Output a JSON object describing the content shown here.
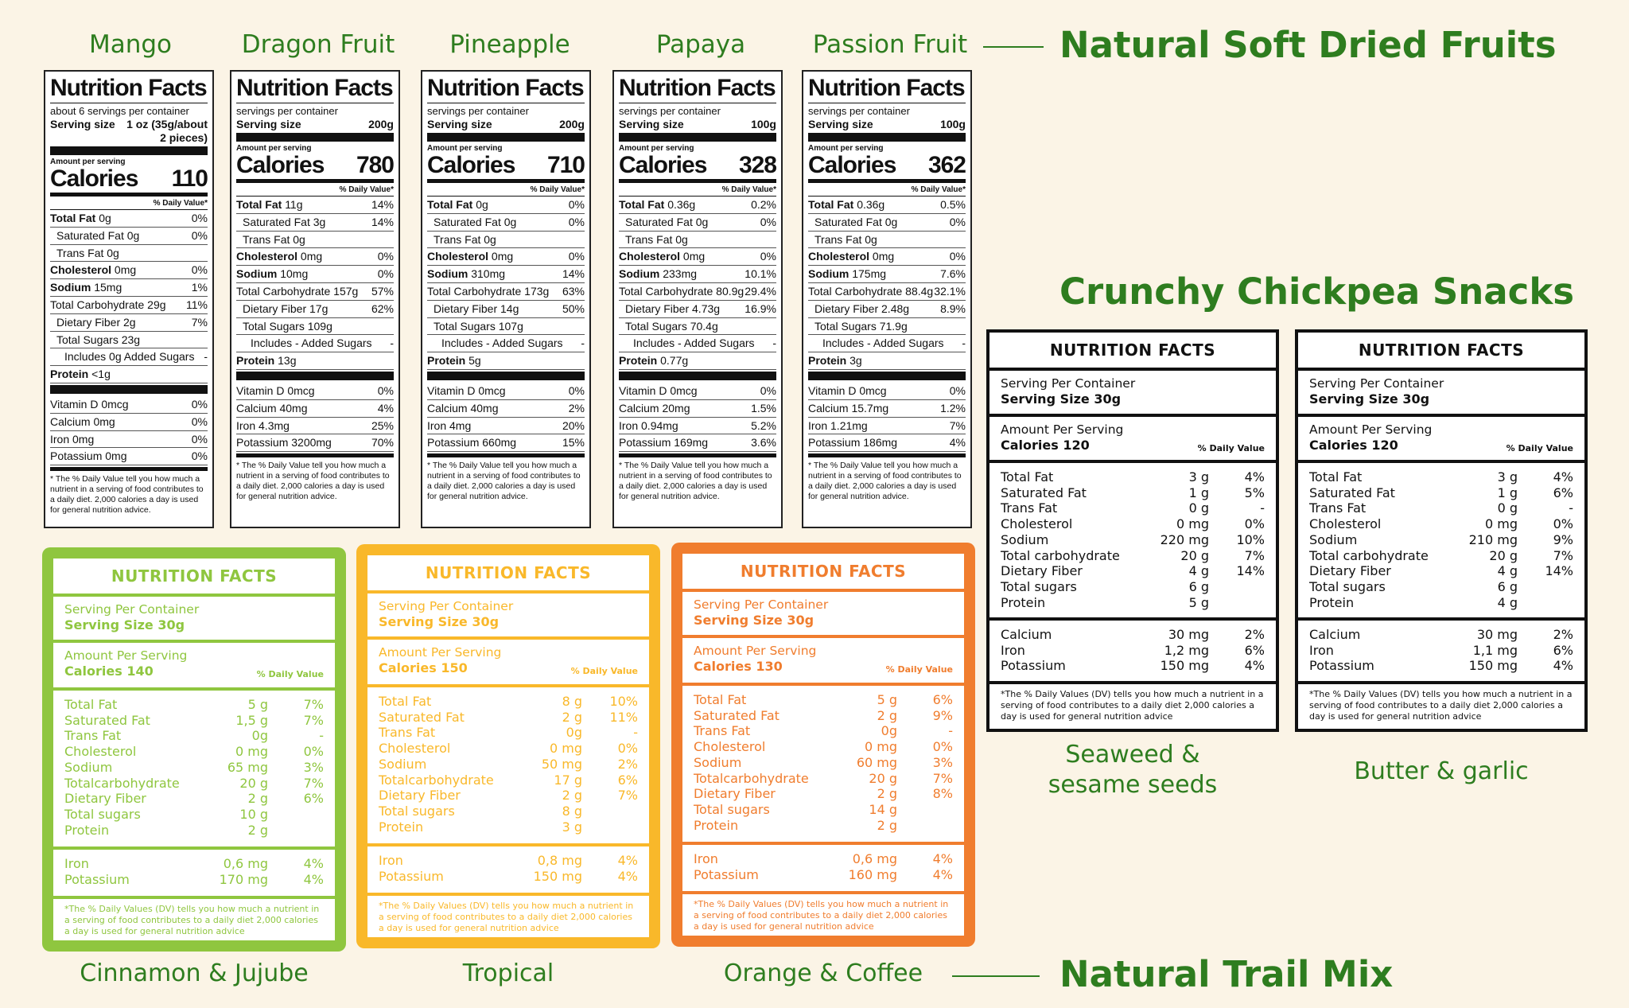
{
  "titles": {
    "dried": "Natural Soft Dried Fruits",
    "chickpea": "Crunchy Chickpea Snacks",
    "trail": "Natural Trail Mix"
  },
  "fruit_names": [
    "Mango",
    "Dragon Fruit",
    "Pineapple",
    "Papaya",
    "Passion Fruit"
  ],
  "colors": {
    "green": "#2e7d1f",
    "lime": "#8fc63f",
    "yellow": "#f9b82a",
    "orange": "#f07d2e",
    "bg": "#fbf4e6"
  },
  "dried_labels": [
    {
      "title": "Nutrition Facts",
      "servings": "about 6 servings per container",
      "serving_label": "Serving size",
      "serving_value": "1 oz (35g/about",
      "serving_value2": "2 pieces)",
      "amount_label": "Amount per serving",
      "calories_label": "Calories",
      "calories": "110",
      "dv_header": "% Daily Value*",
      "rows": [
        {
          "n": "Total Fat",
          "a": "0g",
          "d": "0%",
          "c": "b"
        },
        {
          "n": "Saturated Fat 0g",
          "a": "",
          "d": "0%",
          "c": "i1"
        },
        {
          "n": "Trans Fat 0g",
          "a": "",
          "d": "",
          "c": "i1"
        },
        {
          "n": "Cholesterol",
          "a": "0mg",
          "d": "0%",
          "c": "b"
        },
        {
          "n": "Sodium",
          "a": "15mg",
          "d": "1%",
          "c": "b"
        },
        {
          "n": "Total Carbohydrate 29g",
          "a": "",
          "d": "11%",
          "c": ""
        },
        {
          "n": "Dietary Fiber 2g",
          "a": "",
          "d": "7%",
          "c": "i1"
        },
        {
          "n": "Total Sugars 23g",
          "a": "",
          "d": "",
          "c": "i1"
        },
        {
          "n": "Includes 0g Added Sugars",
          "a": "",
          "d": "-",
          "c": "i2"
        },
        {
          "n": "Protein",
          "a": "<1g",
          "d": "",
          "c": "b"
        }
      ],
      "minerals": [
        {
          "n": "Vitamin D 0mcg",
          "d": "0%"
        },
        {
          "n": "Calcium 0mg",
          "d": "0%"
        },
        {
          "n": "Iron 0mg",
          "d": "0%"
        },
        {
          "n": "Potassium 0mg",
          "d": "0%"
        }
      ],
      "footnote": "* The % Daily Value tell you how much a nutrient in a serving of food contributes to a daily diet. 2,000 calories a day is used for general nutrition advice."
    },
    {
      "title": "Nutrition Facts",
      "servings": "servings per container",
      "serving_label": "Serving size",
      "serving_value": "200g",
      "serving_value2": "",
      "amount_label": "Amount per serving",
      "calories_label": "Calories",
      "calories": "780",
      "dv_header": "% Daily Value*",
      "rows": [
        {
          "n": "Total Fat",
          "a": "11g",
          "d": "14%",
          "c": "b"
        },
        {
          "n": "Saturated Fat 3g",
          "a": "",
          "d": "14%",
          "c": "i1"
        },
        {
          "n": "Trans Fat 0g",
          "a": "",
          "d": "",
          "c": "i1"
        },
        {
          "n": "Cholesterol",
          "a": "0mg",
          "d": "0%",
          "c": "b"
        },
        {
          "n": "Sodium",
          "a": "10mg",
          "d": "0%",
          "c": "b"
        },
        {
          "n": "Total Carbohydrate 157g",
          "a": "",
          "d": "57%",
          "c": ""
        },
        {
          "n": "Dietary Fiber 17g",
          "a": "",
          "d": "62%",
          "c": "i1"
        },
        {
          "n": "Total Sugars 109g",
          "a": "",
          "d": "",
          "c": "i1"
        },
        {
          "n": "Includes - Added Sugars",
          "a": "",
          "d": "-",
          "c": "i2"
        },
        {
          "n": "Protein",
          "a": "13g",
          "d": "",
          "c": "b"
        }
      ],
      "minerals": [
        {
          "n": "Vitamin D 0mcg",
          "d": "0%"
        },
        {
          "n": "Calcium 40mg",
          "d": "4%"
        },
        {
          "n": "Iron 4.3mg",
          "d": "25%"
        },
        {
          "n": "Potassium 3200mg",
          "d": "70%"
        }
      ],
      "footnote": "* The % Daily Value tell you how much a nutrient in a serving of food contributes to a daily diet. 2,000 calories a day is used for general nutrition advice."
    },
    {
      "title": "Nutrition Facts",
      "servings": "servings per container",
      "serving_label": "Serving size",
      "serving_value": "200g",
      "serving_value2": "",
      "amount_label": "Amount per serving",
      "calories_label": "Calories",
      "calories": "710",
      "dv_header": "% Daily Value*",
      "rows": [
        {
          "n": "Total Fat",
          "a": "0g",
          "d": "0%",
          "c": "b"
        },
        {
          "n": "Saturated Fat 0g",
          "a": "",
          "d": "0%",
          "c": "i1"
        },
        {
          "n": "Trans Fat 0g",
          "a": "",
          "d": "",
          "c": "i1"
        },
        {
          "n": "Cholesterol",
          "a": "0mg",
          "d": "0%",
          "c": "b"
        },
        {
          "n": "Sodium",
          "a": "310mg",
          "d": "14%",
          "c": "b"
        },
        {
          "n": "Total Carbohydrate 173g",
          "a": "",
          "d": "63%",
          "c": ""
        },
        {
          "n": "Dietary Fiber 14g",
          "a": "",
          "d": "50%",
          "c": "i1"
        },
        {
          "n": "Total Sugars 107g",
          "a": "",
          "d": "",
          "c": "i1"
        },
        {
          "n": "Includes - Added Sugars",
          "a": "",
          "d": "-",
          "c": "i2"
        },
        {
          "n": "Protein",
          "a": "5g",
          "d": "",
          "c": "b"
        }
      ],
      "minerals": [
        {
          "n": "Vitamin D 0mcg",
          "d": "0%"
        },
        {
          "n": "Calcium 40mg",
          "d": "2%"
        },
        {
          "n": "Iron 4mg",
          "d": "20%"
        },
        {
          "n": "Potassium 660mg",
          "d": "15%"
        }
      ],
      "footnote": "* The % Daily Value tell you how much a nutrient in a serving of food contributes to a daily diet. 2,000 calories a day is used for general nutrition advice."
    },
    {
      "title": "Nutrition Facts",
      "servings": "servings per container",
      "serving_label": "Serving size",
      "serving_value": "100g",
      "serving_value2": "",
      "amount_label": "Amount per serving",
      "calories_label": "Calories",
      "calories": "328",
      "dv_header": "% Daily Value*",
      "rows": [
        {
          "n": "Total Fat",
          "a": "0.36g",
          "d": "0.2%",
          "c": "b"
        },
        {
          "n": "Saturated Fat 0g",
          "a": "",
          "d": "0%",
          "c": "i1"
        },
        {
          "n": "Trans Fat 0g",
          "a": "",
          "d": "",
          "c": "i1"
        },
        {
          "n": "Cholesterol",
          "a": "0mg",
          "d": "0%",
          "c": "b"
        },
        {
          "n": "Sodium",
          "a": "233mg",
          "d": "10.1%",
          "c": "b"
        },
        {
          "n": "Total Carbohydrate 80.9g",
          "a": "",
          "d": "29.4%",
          "c": ""
        },
        {
          "n": "Dietary Fiber 4.73g",
          "a": "",
          "d": "16.9%",
          "c": "i1"
        },
        {
          "n": "Total Sugars 70.4g",
          "a": "",
          "d": "",
          "c": "i1"
        },
        {
          "n": "Includes - Added Sugars",
          "a": "",
          "d": "-",
          "c": "i2"
        },
        {
          "n": "Protein",
          "a": "0.77g",
          "d": "",
          "c": "b"
        }
      ],
      "minerals": [
        {
          "n": "Vitamin D 0mcg",
          "d": "0%"
        },
        {
          "n": "Calcium 20mg",
          "d": "1.5%"
        },
        {
          "n": "Iron 0.94mg",
          "d": "5.2%"
        },
        {
          "n": "Potassium 169mg",
          "d": "3.6%"
        }
      ],
      "footnote": "* The % Daily Value tell you how much a nutrient in a serving of food contributes to a daily diet. 2,000 calories a day is used for general nutrition advice."
    },
    {
      "title": "Nutrition Facts",
      "servings": "servings per container",
      "serving_label": "Serving size",
      "serving_value": "100g",
      "serving_value2": "",
      "amount_label": "Amount per serving",
      "calories_label": "Calories",
      "calories": "362",
      "dv_header": "% Daily Value*",
      "rows": [
        {
          "n": "Total Fat",
          "a": "0.36g",
          "d": "0.5%",
          "c": "b"
        },
        {
          "n": "Saturated Fat 0g",
          "a": "",
          "d": "0%",
          "c": "i1"
        },
        {
          "n": "Trans Fat 0g",
          "a": "",
          "d": "",
          "c": "i1"
        },
        {
          "n": "Cholesterol",
          "a": "0mg",
          "d": "0%",
          "c": "b"
        },
        {
          "n": "Sodium",
          "a": "175mg",
          "d": "7.6%",
          "c": "b"
        },
        {
          "n": "Total Carbohydrate 88.4g",
          "a": "",
          "d": "32.1%",
          "c": ""
        },
        {
          "n": "Dietary Fiber 2.48g",
          "a": "",
          "d": "8.9%",
          "c": "i1"
        },
        {
          "n": "Total Sugars 71.9g",
          "a": "",
          "d": "",
          "c": "i1"
        },
        {
          "n": "Includes - Added Sugars",
          "a": "",
          "d": "-",
          "c": "i2"
        },
        {
          "n": "Protein",
          "a": "3g",
          "d": "",
          "c": "b"
        }
      ],
      "minerals": [
        {
          "n": "Vitamin D 0mcg",
          "d": "0%"
        },
        {
          "n": "Calcium 15.7mg",
          "d": "1.2%"
        },
        {
          "n": "Iron 1.21mg",
          "d": "7%"
        },
        {
          "n": "Potassium 186mg",
          "d": "4%"
        }
      ],
      "footnote": "* The % Daily Value tell you how much a nutrient in a serving of food contributes to a daily diet. 2,000 calories a day is used for general nutrition advice."
    }
  ],
  "chickpea_cards": [
    {
      "name": "Seaweed & sesame seeds",
      "name_lines": [
        "Seaweed &",
        "sesame seeds"
      ],
      "header": "NUTRITION FACTS",
      "servings": "Serving Per Container",
      "serving_size": "Serving Size 30g",
      "amount": "Amount Per Serving",
      "calories": "Calories 120",
      "dv": "% Daily Value",
      "rows": [
        {
          "n": "Total Fat",
          "v": "3 g",
          "d": "4%"
        },
        {
          "n": "Saturated Fat",
          "v": "1 g",
          "d": "5%"
        },
        {
          "n": "Trans Fat",
          "v": "0 g",
          "d": "-"
        },
        {
          "n": "Cholesterol",
          "v": "0 mg",
          "d": "0%"
        },
        {
          "n": "Sodium",
          "v": "220 mg",
          "d": "10%"
        },
        {
          "n": "Total carbohydrate",
          "v": "20 g",
          "d": "7%"
        },
        {
          "n": "Dietary Fiber",
          "v": "4 g",
          "d": "14%"
        },
        {
          "n": "Total sugars",
          "v": "6 g",
          "d": ""
        },
        {
          "n": "Protein",
          "v": "5 g",
          "d": ""
        }
      ],
      "minerals": [
        {
          "n": "Calcium",
          "v": "30 mg",
          "d": "2%"
        },
        {
          "n": "Iron",
          "v": "1,2 mg",
          "d": "6%"
        },
        {
          "n": "Potassium",
          "v": "150 mg",
          "d": "4%"
        }
      ],
      "footnote": "*The % Daily Values (DV) tells you how much a nutrient in a serving of food contributes to a daily diet 2,000 calories a day is used for general nutrition advice"
    },
    {
      "name": "Butter & garlic",
      "name_lines": [
        "Butter & garlic"
      ],
      "header": "NUTRITION FACTS",
      "servings": "Serving Per Container",
      "serving_size": "Serving Size 30g",
      "amount": "Amount Per Serving",
      "calories": "Calories 120",
      "dv": "% Daily Value",
      "rows": [
        {
          "n": "Total Fat",
          "v": "3 g",
          "d": "4%"
        },
        {
          "n": "Saturated Fat",
          "v": "1 g",
          "d": "6%"
        },
        {
          "n": "Trans Fat",
          "v": "0 g",
          "d": "-"
        },
        {
          "n": "Cholesterol",
          "v": "0 mg",
          "d": "0%"
        },
        {
          "n": "Sodium",
          "v": "210 mg",
          "d": "9%"
        },
        {
          "n": "Total carbohydrate",
          "v": "20 g",
          "d": "7%"
        },
        {
          "n": "Dietary Fiber",
          "v": "4 g",
          "d": "14%"
        },
        {
          "n": "Total sugars",
          "v": "6 g",
          "d": ""
        },
        {
          "n": "Protein",
          "v": "4 g",
          "d": ""
        }
      ],
      "minerals": [
        {
          "n": "Calcium",
          "v": "30 mg",
          "d": "2%"
        },
        {
          "n": "Iron",
          "v": "1,1 mg",
          "d": "6%"
        },
        {
          "n": "Potassium",
          "v": "150 mg",
          "d": "4%"
        }
      ],
      "footnote": "*The % Daily Values (DV) tells you how much a nutrient in a serving of food contributes to a daily diet 2,000 calories a day is used for general nutrition advice"
    }
  ],
  "trail_cards": [
    {
      "name": "Cinnamon & Jujube",
      "color": "#8fc63f",
      "header": "NUTRITION FACTS",
      "servings": "Serving Per Container",
      "serving_size": "Serving Size 30g",
      "amount": "Amount Per Serving",
      "calories": "Calories 140",
      "dv": "% Daily Value",
      "rows": [
        {
          "n": "Total Fat",
          "v": "5 g",
          "d": "7%"
        },
        {
          "n": "Saturated Fat",
          "v": "1,5 g",
          "d": "7%"
        },
        {
          "n": "Trans Fat",
          "v": "0g",
          "d": "-"
        },
        {
          "n": "Cholesterol",
          "v": "0 mg",
          "d": "0%"
        },
        {
          "n": "Sodium",
          "v": "65 mg",
          "d": "3%"
        },
        {
          "n": "Totalcarbohydrate",
          "v": "20 g",
          "d": "7%"
        },
        {
          "n": "Dietary Fiber",
          "v": "2 g",
          "d": "6%"
        },
        {
          "n": "Total sugars",
          "v": "10 g",
          "d": ""
        },
        {
          "n": "Protein",
          "v": "2 g",
          "d": ""
        }
      ],
      "minerals": [
        {
          "n": "Iron",
          "v": "0,6 mg",
          "d": "4%"
        },
        {
          "n": "Potassium",
          "v": "170 mg",
          "d": "4%"
        }
      ],
      "footnote": "*The % Daily Values (DV) tells you how much a nutrient in a serving of food contributes to a daily diet 2,000 calories a day is used for general nutrition advice"
    },
    {
      "name": "Tropical",
      "color": "#f9b82a",
      "header": "NUTRITION FACTS",
      "servings": "Serving Per Container",
      "serving_size": "Serving Size 30g",
      "amount": "Amount Per Serving",
      "calories": "Calories 150",
      "dv": "% Daily Value",
      "rows": [
        {
          "n": "Total Fat",
          "v": "8 g",
          "d": "10%"
        },
        {
          "n": "Saturated Fat",
          "v": "2 g",
          "d": "11%"
        },
        {
          "n": "Trans Fat",
          "v": "0g",
          "d": "-"
        },
        {
          "n": "Cholesterol",
          "v": "0 mg",
          "d": "0%"
        },
        {
          "n": "Sodium",
          "v": "50 mg",
          "d": "2%"
        },
        {
          "n": "Totalcarbohydrate",
          "v": "17 g",
          "d": "6%"
        },
        {
          "n": "Dietary Fiber",
          "v": "2 g",
          "d": "7%"
        },
        {
          "n": "Total sugars",
          "v": "8 g",
          "d": ""
        },
        {
          "n": "Protein",
          "v": "3 g",
          "d": ""
        }
      ],
      "minerals": [
        {
          "n": "Iron",
          "v": "0,8 mg",
          "d": "4%"
        },
        {
          "n": "Potassium",
          "v": "150 mg",
          "d": "4%"
        }
      ],
      "footnote": "*The % Daily Values (DV) tells you how much a nutrient in a serving of food contributes to a daily diet 2,000 calories a day is used for general nutrition advice"
    },
    {
      "name": "Orange & Coffee",
      "color": "#f07d2e",
      "header": "NUTRITION FACTS",
      "servings": "Serving Per Container",
      "serving_size": "Serving Size 30g",
      "amount": "Amount Per Serving",
      "calories": "Calories 130",
      "dv": "% Daily Value",
      "rows": [
        {
          "n": "Total Fat",
          "v": "5 g",
          "d": "6%"
        },
        {
          "n": "Saturated Fat",
          "v": "2 g",
          "d": "9%"
        },
        {
          "n": "Trans Fat",
          "v": "0g",
          "d": "-"
        },
        {
          "n": "Cholesterol",
          "v": "0 mg",
          "d": "0%"
        },
        {
          "n": "Sodium",
          "v": "60 mg",
          "d": "3%"
        },
        {
          "n": "Totalcarbohydrate",
          "v": "20 g",
          "d": "7%"
        },
        {
          "n": "Dietary Fiber",
          "v": "2 g",
          "d": "8%"
        },
        {
          "n": "Total sugars",
          "v": "14 g",
          "d": ""
        },
        {
          "n": "Protein",
          "v": "2 g",
          "d": ""
        }
      ],
      "minerals": [
        {
          "n": "Iron",
          "v": "0,6 mg",
          "d": "4%"
        },
        {
          "n": "Potassium",
          "v": "160 mg",
          "d": "4%"
        }
      ],
      "footnote": "*The % Daily Values (DV) tells you how much a nutrient in a serving of food contributes to a daily diet 2,000 calories a day is used for general nutrition advice"
    }
  ]
}
